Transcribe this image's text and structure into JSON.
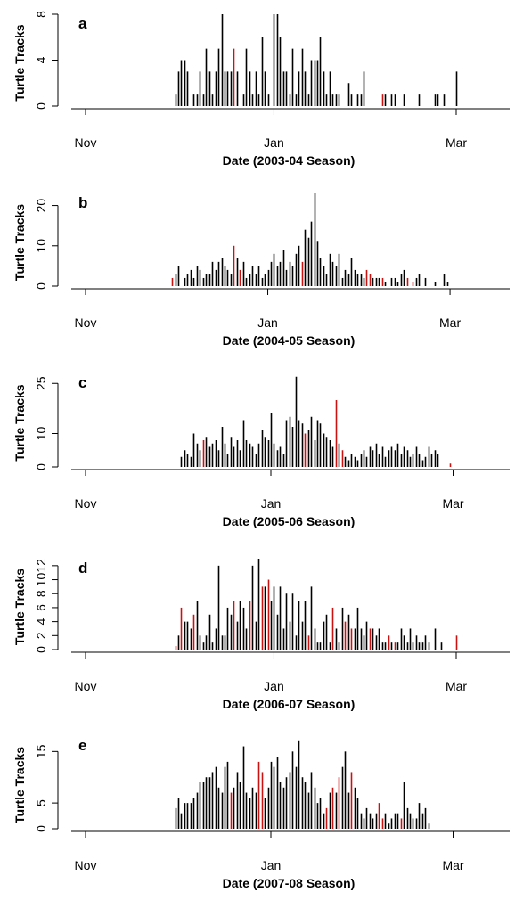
{
  "colors": {
    "nest": "#000000",
    "highlight": "#cc1111"
  },
  "chart_data": [
    {
      "type": "bar",
      "panel_label": "a",
      "xlabel": "Date (2003-04 Season)",
      "ylabel": "Turtle Tracks",
      "xlim": [
        0,
        120
      ],
      "ylim": [
        0,
        8
      ],
      "yticks": [
        0,
        4,
        8
      ],
      "xticks": [
        {
          "label": "Nov",
          "pos": 0
        },
        {
          "label": "Jan",
          "pos": 61
        },
        {
          "label": "Mar",
          "pos": 120
        }
      ],
      "days": [
        29,
        30,
        31,
        32,
        33,
        35,
        36,
        37,
        38,
        39,
        40,
        41,
        42,
        43,
        44,
        45,
        46,
        47,
        48,
        49,
        51,
        52,
        53,
        54,
        55,
        56,
        57,
        58,
        59,
        61,
        62,
        63,
        64,
        65,
        66,
        67,
        68,
        69,
        70,
        71,
        72,
        73,
        74,
        75,
        76,
        77,
        78,
        79,
        80,
        81,
        82,
        85,
        86,
        88,
        89,
        90,
        96,
        97,
        99,
        100,
        103,
        108,
        113,
        114,
        116,
        120
      ],
      "values": [
        1,
        3,
        4,
        4,
        3,
        1,
        1,
        3,
        1,
        5,
        3,
        1,
        3,
        5,
        8,
        3,
        3,
        3,
        5,
        3,
        1,
        5,
        3,
        1,
        3,
        1,
        6,
        3,
        1,
        8,
        8,
        6,
        3,
        3,
        1,
        5,
        1,
        3,
        5,
        3,
        1,
        4,
        4,
        4,
        6,
        3,
        1,
        3,
        1,
        1,
        1,
        2,
        1,
        1,
        1,
        3,
        1,
        1,
        1,
        1,
        1,
        1,
        1,
        1,
        1,
        3
      ],
      "highlights": [
        48,
        96
      ]
    },
    {
      "type": "bar",
      "panel_label": "b",
      "xlabel": "Date (2004-05 Season)",
      "ylabel": "Turtle Tracks",
      "xlim": [
        0,
        120
      ],
      "ylim": [
        0,
        23
      ],
      "yticks": [
        0,
        10,
        20
      ],
      "xticks": [
        {
          "label": "Nov",
          "pos": 0
        },
        {
          "label": "Jan",
          "pos": 59
        },
        {
          "label": "Mar",
          "pos": 118
        }
      ],
      "days": [
        28,
        29,
        30,
        32,
        33,
        34,
        35,
        36,
        37,
        38,
        39,
        40,
        41,
        42,
        43,
        44,
        45,
        46,
        47,
        48,
        49,
        50,
        51,
        52,
        53,
        54,
        55,
        56,
        57,
        58,
        59,
        60,
        61,
        62,
        63,
        64,
        65,
        66,
        67,
        68,
        69,
        70,
        71,
        72,
        73,
        74,
        75,
        76,
        77,
        78,
        79,
        80,
        81,
        82,
        83,
        84,
        85,
        86,
        87,
        88,
        89,
        90,
        91,
        92,
        93,
        94,
        95,
        96,
        97,
        99,
        100,
        101,
        102,
        103,
        104,
        106,
        107,
        108,
        110,
        113,
        116,
        117
      ],
      "values": [
        2,
        3,
        5,
        2,
        3,
        4,
        2,
        5,
        4,
        2,
        3,
        3,
        6,
        4,
        6,
        7,
        5,
        4,
        3,
        10,
        7,
        4,
        6,
        2,
        3,
        5,
        3,
        5,
        2,
        3,
        4,
        6,
        8,
        5,
        6,
        9,
        4,
        6,
        5,
        8,
        10,
        6,
        14,
        12,
        16,
        23,
        11,
        7,
        5,
        3,
        8,
        6,
        5,
        8,
        2,
        4,
        3,
        7,
        4,
        3,
        3,
        2,
        4,
        3,
        2,
        2,
        2,
        2,
        1,
        2,
        2,
        1,
        3,
        4,
        2,
        1,
        2,
        3,
        2,
        1,
        3,
        1
      ],
      "highlights": [
        28,
        48,
        50,
        70,
        91,
        92,
        96,
        104,
        106
      ]
    },
    {
      "type": "bar",
      "panel_label": "c",
      "xlabel": "Date (2005-06 Season)",
      "ylabel": "Turtle Tracks",
      "xlim": [
        0,
        120
      ],
      "ylim": [
        0,
        28
      ],
      "yticks": [
        0,
        10,
        25
      ],
      "xticks": [
        {
          "label": "Nov",
          "pos": 0
        },
        {
          "label": "Jan",
          "pos": 60
        },
        {
          "label": "Mar",
          "pos": 119
        }
      ],
      "days": [
        31,
        32,
        33,
        34,
        35,
        36,
        37,
        38,
        39,
        40,
        41,
        42,
        43,
        44,
        45,
        46,
        47,
        48,
        49,
        50,
        51,
        52,
        53,
        54,
        55,
        56,
        57,
        58,
        59,
        60,
        61,
        62,
        63,
        64,
        65,
        66,
        67,
        68,
        69,
        70,
        71,
        72,
        73,
        74,
        75,
        76,
        77,
        78,
        79,
        80,
        81,
        82,
        83,
        84,
        85,
        86,
        87,
        88,
        89,
        90,
        91,
        92,
        93,
        94,
        95,
        96,
        97,
        98,
        99,
        100,
        101,
        102,
        103,
        104,
        105,
        106,
        107,
        108,
        109,
        110,
        111,
        112,
        113,
        114,
        118
      ],
      "values": [
        3,
        5,
        4,
        3,
        10,
        7,
        5,
        8,
        9,
        6,
        7,
        8,
        5,
        12,
        7,
        4,
        9,
        6,
        8,
        5,
        14,
        8,
        7,
        6,
        4,
        7,
        11,
        9,
        8,
        16,
        7,
        5,
        6,
        4,
        14,
        15,
        12,
        27,
        14,
        13,
        10,
        11,
        15,
        8,
        14,
        13,
        10,
        9,
        8,
        6,
        20,
        7,
        5,
        3,
        2,
        4,
        3,
        2,
        4,
        5,
        3,
        6,
        5,
        7,
        4,
        6,
        3,
        5,
        6,
        5,
        7,
        4,
        6,
        5,
        3,
        4,
        6,
        4,
        2,
        3,
        6,
        4,
        5,
        4,
        1
      ],
      "highlights": [
        38,
        71,
        81,
        83,
        118
      ]
    },
    {
      "type": "bar",
      "panel_label": "d",
      "xlabel": "Date (2006-07 Season)",
      "ylabel": "Turtle Tracks",
      "xlim": [
        0,
        120
      ],
      "ylim": [
        0,
        13
      ],
      "yticks": [
        0,
        2,
        4,
        6,
        8,
        10,
        12
      ],
      "xticks": [
        {
          "label": "Nov",
          "pos": 0
        },
        {
          "label": "Jan",
          "pos": 61
        },
        {
          "label": "Mar",
          "pos": 120
        }
      ],
      "days": [
        29,
        30,
        31,
        32,
        33,
        34,
        35,
        36,
        37,
        38,
        39,
        40,
        41,
        42,
        43,
        44,
        45,
        46,
        47,
        48,
        49,
        50,
        51,
        52,
        53,
        54,
        55,
        56,
        57,
        58,
        59,
        60,
        61,
        62,
        63,
        64,
        65,
        66,
        67,
        68,
        69,
        70,
        71,
        72,
        73,
        74,
        75,
        76,
        77,
        78,
        79,
        80,
        81,
        82,
        83,
        84,
        85,
        86,
        87,
        88,
        89,
        90,
        91,
        92,
        93,
        94,
        95,
        96,
        97,
        98,
        99,
        100,
        101,
        102,
        103,
        104,
        105,
        106,
        107,
        108,
        109,
        110,
        111,
        113,
        115,
        120
      ],
      "values": [
        0.5,
        2,
        6,
        4,
        4,
        3,
        5,
        7,
        2,
        1,
        2,
        5,
        1,
        3,
        12,
        2,
        2,
        6,
        5,
        7,
        4,
        7,
        6,
        3,
        7,
        12,
        4,
        13,
        9,
        9,
        10,
        7,
        9,
        5,
        9,
        3,
        8,
        4,
        8,
        2,
        7,
        4,
        7,
        2,
        9,
        3,
        1,
        1,
        4,
        5,
        1,
        6,
        3,
        1,
        6,
        4,
        5,
        3,
        3,
        6,
        3,
        2,
        4,
        3,
        3,
        2,
        3,
        1,
        1,
        2,
        1,
        1,
        1,
        3,
        2,
        1,
        3,
        1,
        2,
        1,
        1,
        2,
        1,
        3,
        1,
        2
      ],
      "highlights": [
        29,
        31,
        35,
        48,
        53,
        57,
        59,
        72,
        80,
        84,
        86,
        92,
        98,
        100,
        120
      ]
    },
    {
      "type": "bar",
      "panel_label": "e",
      "xlabel": "Date (2007-08 Season)",
      "ylabel": "Turtle Tracks",
      "xlim": [
        0,
        120
      ],
      "ylim": [
        0,
        18
      ],
      "yticks": [
        0,
        5,
        15
      ],
      "xticks": [
        {
          "label": "Nov",
          "pos": 0
        },
        {
          "label": "Jan",
          "pos": 60
        },
        {
          "label": "Mar",
          "pos": 119
        }
      ],
      "days": [
        29,
        30,
        31,
        32,
        33,
        34,
        35,
        36,
        37,
        38,
        39,
        40,
        41,
        42,
        43,
        44,
        45,
        46,
        47,
        48,
        49,
        50,
        51,
        52,
        53,
        54,
        55,
        56,
        57,
        58,
        59,
        60,
        61,
        62,
        63,
        64,
        65,
        66,
        67,
        68,
        69,
        70,
        71,
        72,
        73,
        74,
        75,
        76,
        77,
        78,
        79,
        80,
        81,
        82,
        83,
        84,
        85,
        86,
        87,
        88,
        89,
        90,
        91,
        92,
        93,
        94,
        95,
        96,
        97,
        98,
        99,
        100,
        101,
        102,
        103,
        104,
        105,
        106,
        107,
        108,
        109,
        110,
        111
      ],
      "values": [
        4,
        6,
        3,
        5,
        5,
        5,
        6,
        7,
        9,
        9,
        10,
        10,
        11,
        12,
        8,
        7,
        12,
        13,
        7,
        8,
        11,
        9,
        16,
        7,
        6,
        8,
        7,
        13,
        11,
        6,
        8,
        13,
        12,
        14,
        9,
        8,
        10,
        11,
        15,
        12,
        17,
        10,
        9,
        7,
        11,
        8,
        5,
        6,
        3,
        4,
        7,
        8,
        7,
        10,
        12,
        15,
        7,
        11,
        8,
        6,
        3,
        2,
        4,
        3,
        2,
        3,
        5,
        2,
        3,
        1,
        2,
        3,
        3,
        2,
        9,
        4,
        3,
        2,
        2,
        5,
        3,
        4,
        1
      ],
      "highlights": [
        47,
        56,
        57,
        78,
        80,
        82,
        86,
        95,
        96,
        102
      ]
    }
  ]
}
